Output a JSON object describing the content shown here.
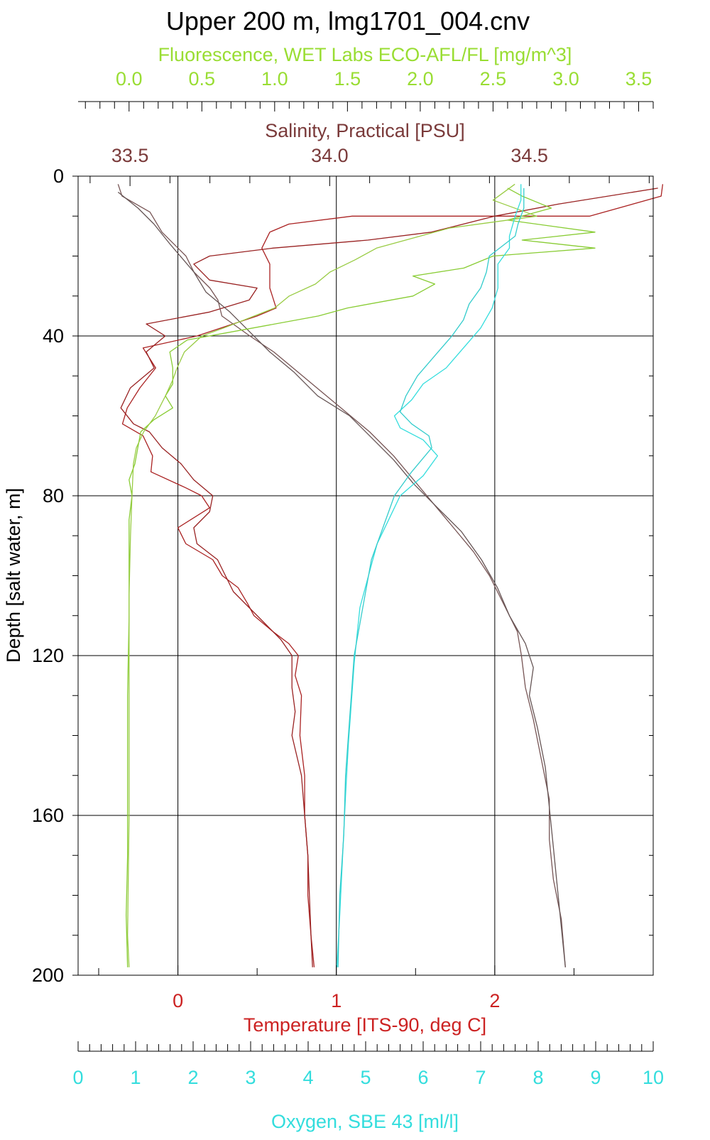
{
  "chart_data": {
    "type": "line",
    "title": "Upper 200 m, lmg1701_004.cnv",
    "ylabel": "Depth [salt water, m]",
    "y_inverted": true,
    "ylim": [
      0,
      200
    ],
    "yticks": [
      0,
      40,
      80,
      120,
      160,
      200
    ],
    "grid": true,
    "axes": {
      "fluorescence": {
        "label": "Fluorescence, WET Labs ECO-AFL/FL [mg/m^3]",
        "position": "top",
        "color": "#99dd33",
        "range": [
          -0.35,
          3.6
        ],
        "ticks": [
          0.0,
          0.5,
          1.0,
          1.5,
          2.0,
          2.5,
          3.0,
          3.5
        ],
        "tick_labels": [
          "0.0",
          "0.5",
          "1.0",
          "1.5",
          "2.0",
          "2.5",
          "3.0",
          "3.5"
        ]
      },
      "salinity": {
        "label": "Salinity, Practical [PSU]",
        "position": "top",
        "color": "#7a3a3a",
        "range": [
          33.37,
          34.81
        ],
        "ticks": [
          33.5,
          34.0,
          34.5
        ],
        "tick_labels": [
          "33.5",
          "34.0",
          "34.5"
        ]
      },
      "temperature": {
        "label": "Temperature [ITS-90, deg C]",
        "position": "bottom",
        "color": "#cc2222",
        "range": [
          -0.63,
          3.0
        ],
        "ticks": [
          0,
          1,
          2
        ],
        "tick_labels": [
          "0",
          "1",
          "2"
        ]
      },
      "oxygen": {
        "label": "Oxygen, SBE 43 [ml/l]",
        "position": "bottom",
        "color": "#33dddd",
        "range": [
          0,
          10
        ],
        "ticks": [
          0,
          1,
          2,
          3,
          4,
          5,
          6,
          7,
          8,
          9,
          10
        ],
        "tick_labels": [
          "0",
          "1",
          "2",
          "3",
          "4",
          "5",
          "6",
          "7",
          "8",
          "9",
          "10"
        ]
      }
    },
    "series": [
      {
        "key": "temp_down",
        "axis": "temperature",
        "color": "#aa2222",
        "points": [
          [
            3.06,
            2
          ],
          [
            3.05,
            5
          ],
          [
            2.6,
            10
          ],
          [
            1.1,
            10
          ],
          [
            0.7,
            12
          ],
          [
            0.58,
            14
          ],
          [
            0.53,
            18
          ],
          [
            0.58,
            22
          ],
          [
            0.58,
            28
          ],
          [
            0.62,
            33
          ],
          [
            0.5,
            35
          ],
          [
            0.12,
            40
          ],
          [
            -0.22,
            43
          ],
          [
            -0.14,
            48
          ],
          [
            -0.24,
            53
          ],
          [
            -0.32,
            58
          ],
          [
            -0.35,
            62
          ],
          [
            -0.22,
            65
          ],
          [
            -0.16,
            70
          ],
          [
            -0.17,
            74
          ],
          [
            0.05,
            78
          ],
          [
            0.15,
            80
          ],
          [
            0.2,
            83
          ],
          [
            0.0,
            88
          ],
          [
            0.05,
            92
          ],
          [
            0.22,
            96
          ],
          [
            0.28,
            100
          ],
          [
            0.38,
            103
          ],
          [
            0.44,
            107
          ],
          [
            0.48,
            110
          ],
          [
            0.6,
            114
          ],
          [
            0.7,
            117
          ],
          [
            0.76,
            120
          ],
          [
            0.74,
            125
          ],
          [
            0.78,
            130
          ],
          [
            0.77,
            140
          ],
          [
            0.8,
            150
          ],
          [
            0.8,
            160
          ],
          [
            0.82,
            170
          ],
          [
            0.82,
            180
          ],
          [
            0.84,
            190
          ],
          [
            0.86,
            198
          ]
        ]
      },
      {
        "key": "temp_up",
        "axis": "temperature",
        "color": "#992222",
        "points": [
          [
            3.03,
            3
          ],
          [
            2.4,
            7
          ],
          [
            2.0,
            10
          ],
          [
            1.6,
            14
          ],
          [
            1.2,
            16
          ],
          [
            0.6,
            18
          ],
          [
            0.2,
            20
          ],
          [
            0.1,
            22
          ],
          [
            0.2,
            26
          ],
          [
            0.5,
            28
          ],
          [
            0.45,
            31
          ],
          [
            0.2,
            34
          ],
          [
            -0.2,
            37
          ],
          [
            -0.08,
            40
          ],
          [
            -0.2,
            44
          ],
          [
            -0.15,
            48
          ],
          [
            -0.3,
            53
          ],
          [
            -0.36,
            58
          ],
          [
            -0.28,
            62
          ],
          [
            -0.18,
            64
          ],
          [
            -0.1,
            68
          ],
          [
            0.02,
            72
          ],
          [
            0.1,
            76
          ],
          [
            0.22,
            80
          ],
          [
            0.2,
            84
          ],
          [
            0.1,
            88
          ],
          [
            0.12,
            92
          ],
          [
            0.25,
            96
          ],
          [
            0.3,
            100
          ],
          [
            0.35,
            104
          ],
          [
            0.45,
            108
          ],
          [
            0.55,
            112
          ],
          [
            0.65,
            116
          ],
          [
            0.72,
            120
          ],
          [
            0.72,
            128
          ],
          [
            0.74,
            134
          ],
          [
            0.72,
            140
          ],
          [
            0.75,
            145
          ],
          [
            0.78,
            150
          ],
          [
            0.8,
            160
          ],
          [
            0.82,
            170
          ],
          [
            0.83,
            180
          ],
          [
            0.84,
            190
          ],
          [
            0.85,
            198
          ]
        ]
      },
      {
        "key": "sal_down",
        "axis": "salinity",
        "color": "#775555",
        "points": [
          [
            33.47,
            2
          ],
          [
            33.48,
            5
          ],
          [
            33.55,
            9
          ],
          [
            33.58,
            14
          ],
          [
            33.64,
            20
          ],
          [
            33.66,
            24
          ],
          [
            33.7,
            28
          ],
          [
            33.72,
            31
          ],
          [
            33.73,
            35
          ],
          [
            33.8,
            40
          ],
          [
            33.86,
            44
          ],
          [
            33.92,
            49
          ],
          [
            33.98,
            54
          ],
          [
            34.04,
            59
          ],
          [
            34.1,
            64
          ],
          [
            34.16,
            70
          ],
          [
            34.21,
            76
          ],
          [
            34.26,
            82
          ],
          [
            34.31,
            88
          ],
          [
            34.36,
            94
          ],
          [
            34.4,
            100
          ],
          [
            34.44,
            108
          ],
          [
            34.47,
            114
          ],
          [
            34.48,
            120
          ],
          [
            34.49,
            128
          ],
          [
            34.51,
            136
          ],
          [
            34.53,
            146
          ],
          [
            34.55,
            156
          ],
          [
            34.55,
            166
          ],
          [
            34.56,
            176
          ],
          [
            34.58,
            186
          ],
          [
            34.59,
            198
          ]
        ]
      },
      {
        "key": "sal_up",
        "axis": "salinity",
        "color": "#665555",
        "points": [
          [
            33.47,
            4
          ],
          [
            33.52,
            8
          ],
          [
            33.56,
            12
          ],
          [
            33.6,
            17
          ],
          [
            33.66,
            24
          ],
          [
            33.69,
            29
          ],
          [
            33.75,
            34
          ],
          [
            33.79,
            38
          ],
          [
            33.85,
            44
          ],
          [
            33.91,
            49
          ],
          [
            33.97,
            55
          ],
          [
            34.05,
            60
          ],
          [
            34.1,
            65
          ],
          [
            34.16,
            71
          ],
          [
            34.21,
            77
          ],
          [
            34.27,
            83
          ],
          [
            34.33,
            89
          ],
          [
            34.38,
            96
          ],
          [
            34.42,
            103
          ],
          [
            34.45,
            110
          ],
          [
            34.49,
            117
          ],
          [
            34.51,
            123
          ],
          [
            34.5,
            130
          ],
          [
            34.52,
            138
          ],
          [
            34.54,
            148
          ],
          [
            34.55,
            158
          ],
          [
            34.56,
            168
          ],
          [
            34.57,
            178
          ],
          [
            34.58,
            188
          ],
          [
            34.59,
            198
          ]
        ]
      },
      {
        "key": "fluor_down",
        "axis": "fluorescence",
        "color": "#88cc33",
        "points": [
          [
            2.6,
            3
          ],
          [
            2.7,
            5
          ],
          [
            2.9,
            8
          ],
          [
            2.6,
            11
          ],
          [
            3.2,
            14
          ],
          [
            2.7,
            16
          ],
          [
            3.2,
            18
          ],
          [
            2.5,
            20
          ],
          [
            2.3,
            23
          ],
          [
            1.95,
            25
          ],
          [
            2.1,
            27
          ],
          [
            1.95,
            30
          ],
          [
            1.5,
            33
          ],
          [
            1.3,
            35
          ],
          [
            0.85,
            38
          ],
          [
            0.4,
            41
          ],
          [
            0.28,
            44
          ],
          [
            0.3,
            48
          ],
          [
            0.3,
            52
          ],
          [
            0.25,
            55
          ],
          [
            0.3,
            58
          ],
          [
            0.17,
            61
          ],
          [
            0.08,
            64
          ],
          [
            0.06,
            68
          ],
          [
            0.04,
            72
          ],
          [
            0.0,
            76
          ],
          [
            0.02,
            80
          ],
          [
            0.0,
            86
          ],
          [
            0.0,
            95
          ],
          [
            0.0,
            110
          ],
          [
            -0.01,
            130
          ],
          [
            -0.01,
            150
          ],
          [
            -0.01,
            170
          ],
          [
            -0.02,
            185
          ],
          [
            -0.01,
            198
          ]
        ]
      },
      {
        "key": "fluor_up",
        "axis": "fluorescence",
        "color": "#99cc44",
        "points": [
          [
            2.65,
            2
          ],
          [
            2.5,
            6
          ],
          [
            2.8,
            10
          ],
          [
            2.2,
            13
          ],
          [
            1.9,
            16
          ],
          [
            1.7,
            18
          ],
          [
            1.55,
            21
          ],
          [
            1.38,
            24
          ],
          [
            1.28,
            27
          ],
          [
            1.1,
            30
          ],
          [
            1.0,
            33
          ],
          [
            0.86,
            35
          ],
          [
            0.65,
            38
          ],
          [
            0.5,
            40
          ],
          [
            0.38,
            44
          ],
          [
            0.33,
            48
          ],
          [
            0.3,
            51
          ],
          [
            0.25,
            55
          ],
          [
            0.18,
            60
          ],
          [
            0.1,
            64
          ],
          [
            0.05,
            68
          ],
          [
            0.03,
            72
          ],
          [
            0.02,
            80
          ],
          [
            0.01,
            90
          ],
          [
            0.0,
            105
          ],
          [
            0.0,
            130
          ],
          [
            0.0,
            160
          ],
          [
            -0.01,
            190
          ],
          [
            0.0,
            198
          ]
        ]
      },
      {
        "key": "oxy_down",
        "axis": "oxygen",
        "color": "#33dddd",
        "points": [
          [
            7.7,
            2
          ],
          [
            7.7,
            6
          ],
          [
            7.6,
            10
          ],
          [
            7.5,
            15
          ],
          [
            7.5,
            18
          ],
          [
            7.3,
            22
          ],
          [
            7.3,
            28
          ],
          [
            7.2,
            33
          ],
          [
            7.0,
            38
          ],
          [
            6.7,
            43
          ],
          [
            6.4,
            48
          ],
          [
            6.0,
            52
          ],
          [
            5.8,
            56
          ],
          [
            5.5,
            60
          ],
          [
            5.6,
            63
          ],
          [
            6.0,
            66
          ],
          [
            6.25,
            70
          ],
          [
            6.0,
            75
          ],
          [
            5.6,
            80
          ],
          [
            5.4,
            86
          ],
          [
            5.2,
            92
          ],
          [
            5.05,
            100
          ],
          [
            4.9,
            108
          ],
          [
            4.85,
            115
          ],
          [
            4.8,
            122
          ],
          [
            4.75,
            132
          ],
          [
            4.7,
            142
          ],
          [
            4.65,
            155
          ],
          [
            4.6,
            170
          ],
          [
            4.55,
            185
          ],
          [
            4.5,
            198
          ]
        ]
      },
      {
        "key": "oxy_up",
        "axis": "oxygen",
        "color": "#33cccc",
        "points": [
          [
            7.75,
            3
          ],
          [
            7.75,
            8
          ],
          [
            7.65,
            12
          ],
          [
            7.6,
            15
          ],
          [
            7.15,
            20
          ],
          [
            7.1,
            24
          ],
          [
            7.0,
            28
          ],
          [
            6.8,
            32
          ],
          [
            6.7,
            36
          ],
          [
            6.5,
            40
          ],
          [
            6.2,
            45
          ],
          [
            5.9,
            50
          ],
          [
            5.7,
            55
          ],
          [
            5.6,
            59
          ],
          [
            5.8,
            62
          ],
          [
            6.1,
            65
          ],
          [
            6.15,
            68
          ],
          [
            5.8,
            74
          ],
          [
            5.5,
            80
          ],
          [
            5.3,
            88
          ],
          [
            5.1,
            96
          ],
          [
            5.0,
            104
          ],
          [
            4.9,
            112
          ],
          [
            4.8,
            120
          ],
          [
            4.75,
            130
          ],
          [
            4.7,
            140
          ],
          [
            4.65,
            150
          ],
          [
            4.62,
            165
          ],
          [
            4.55,
            180
          ],
          [
            4.52,
            198
          ]
        ]
      }
    ]
  }
}
